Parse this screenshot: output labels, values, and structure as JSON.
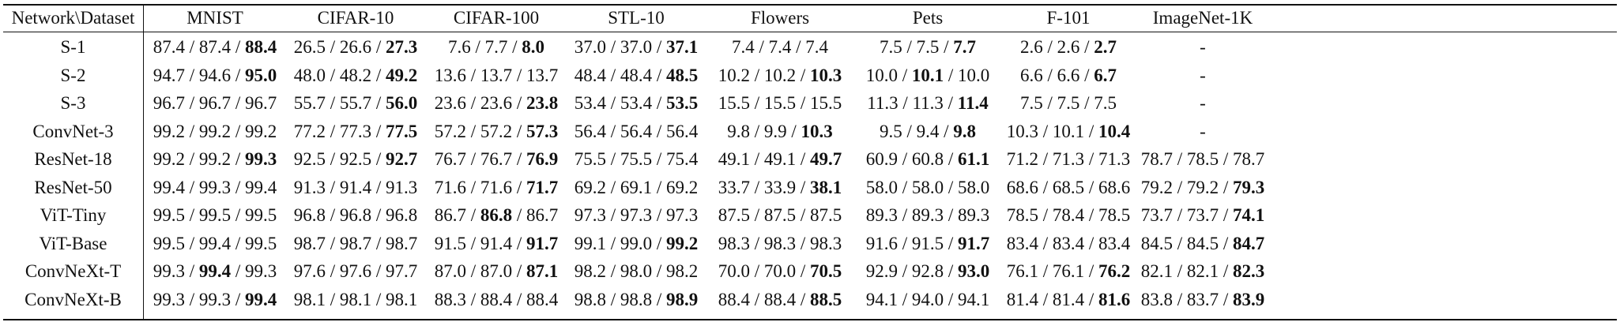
{
  "table": {
    "corner_header": "Network\\Dataset",
    "columns": [
      "MNIST",
      "CIFAR-10",
      "CIFAR-100",
      "STL-10",
      "Flowers",
      "Pets",
      "F-101",
      "ImageNet-1K"
    ],
    "rows": [
      {
        "network": "S-1",
        "cells": [
          {
            "a": "87.4",
            "b": "87.4",
            "c": "88.4",
            "bold": 2
          },
          {
            "a": "26.5",
            "b": "26.6",
            "c": "27.3",
            "bold": 2
          },
          {
            "a": "7.6",
            "b": "7.7",
            "c": "8.0",
            "bold": 2
          },
          {
            "a": "37.0",
            "b": "37.0",
            "c": "37.1",
            "bold": 2
          },
          {
            "a": "7.4",
            "b": "7.4",
            "c": "7.4",
            "bold": -1
          },
          {
            "a": "7.5",
            "b": "7.5",
            "c": "7.7",
            "bold": 2
          },
          {
            "a": "2.6",
            "b": "2.6",
            "c": "2.7",
            "bold": 2
          },
          {
            "dash": "-"
          }
        ]
      },
      {
        "network": "S-2",
        "cells": [
          {
            "a": "94.7",
            "b": "94.6",
            "c": "95.0",
            "bold": 2
          },
          {
            "a": "48.0",
            "b": "48.2",
            "c": "49.2",
            "bold": 2
          },
          {
            "a": "13.6",
            "b": "13.7",
            "c": "13.7",
            "bold": -1
          },
          {
            "a": "48.4",
            "b": "48.4",
            "c": "48.5",
            "bold": 2
          },
          {
            "a": "10.2",
            "b": "10.2",
            "c": "10.3",
            "bold": 2
          },
          {
            "a": "10.0",
            "b": "10.1",
            "c": "10.0",
            "bold": 1
          },
          {
            "a": "6.6",
            "b": "6.6",
            "c": "6.7",
            "bold": 2
          },
          {
            "dash": "-"
          }
        ]
      },
      {
        "network": "S-3",
        "cells": [
          {
            "a": "96.7",
            "b": "96.7",
            "c": "96.7",
            "bold": -1
          },
          {
            "a": "55.7",
            "b": "55.7",
            "c": "56.0",
            "bold": 2
          },
          {
            "a": "23.6",
            "b": "23.6",
            "c": "23.8",
            "bold": 2
          },
          {
            "a": "53.4",
            "b": "53.4",
            "c": "53.5",
            "bold": 2
          },
          {
            "a": "15.5",
            "b": "15.5",
            "c": "15.5",
            "bold": -1
          },
          {
            "a": "11.3",
            "b": "11.3",
            "c": "11.4",
            "bold": 2
          },
          {
            "a": "7.5",
            "b": "7.5",
            "c": "7.5",
            "bold": -1
          },
          {
            "dash": "-"
          }
        ]
      },
      {
        "network": "ConvNet-3",
        "cells": [
          {
            "a": "99.2",
            "b": "99.2",
            "c": "99.2",
            "bold": -1
          },
          {
            "a": "77.2",
            "b": "77.3",
            "c": "77.5",
            "bold": 2
          },
          {
            "a": "57.2",
            "b": "57.2",
            "c": "57.3",
            "bold": 2
          },
          {
            "a": "56.4",
            "b": "56.4",
            "c": "56.4",
            "bold": -1
          },
          {
            "a": "9.8",
            "b": "9.9",
            "c": "10.3",
            "bold": 2
          },
          {
            "a": "9.5",
            "b": "9.4",
            "c": "9.8",
            "bold": 2
          },
          {
            "a": "10.3",
            "b": "10.1",
            "c": "10.4",
            "bold": 2
          },
          {
            "dash": "-"
          }
        ]
      },
      {
        "network": "ResNet-18",
        "cells": [
          {
            "a": "99.2",
            "b": "99.2",
            "c": "99.3",
            "bold": 2
          },
          {
            "a": "92.5",
            "b": "92.5",
            "c": "92.7",
            "bold": 2
          },
          {
            "a": "76.7",
            "b": "76.7",
            "c": "76.9",
            "bold": 2
          },
          {
            "a": "75.5",
            "b": "75.5",
            "c": "75.4",
            "bold": -1
          },
          {
            "a": "49.1",
            "b": "49.1",
            "c": "49.7",
            "bold": 2
          },
          {
            "a": "60.9",
            "b": "60.8",
            "c": "61.1",
            "bold": 2
          },
          {
            "a": "71.2",
            "b": "71.3",
            "c": "71.3",
            "bold": -1
          },
          {
            "a": "78.7",
            "b": "78.5",
            "c": "78.7",
            "bold": -1
          }
        ]
      },
      {
        "network": "ResNet-50",
        "cells": [
          {
            "a": "99.4",
            "b": "99.3",
            "c": "99.4",
            "bold": -1
          },
          {
            "a": "91.3",
            "b": "91.4",
            "c": "91.3",
            "bold": -1
          },
          {
            "a": "71.6",
            "b": "71.6",
            "c": "71.7",
            "bold": 2
          },
          {
            "a": "69.2",
            "b": "69.1",
            "c": "69.2",
            "bold": -1
          },
          {
            "a": "33.7",
            "b": "33.9",
            "c": "38.1",
            "bold": 2
          },
          {
            "a": "58.0",
            "b": "58.0",
            "c": "58.0",
            "bold": -1
          },
          {
            "a": "68.6",
            "b": "68.5",
            "c": "68.6",
            "bold": -1
          },
          {
            "a": "79.2",
            "b": "79.2",
            "c": "79.3",
            "bold": 2
          }
        ]
      },
      {
        "network": "ViT-Tiny",
        "cells": [
          {
            "a": "99.5",
            "b": "99.5",
            "c": "99.5",
            "bold": -1
          },
          {
            "a": "96.8",
            "b": "96.8",
            "c": "96.8",
            "bold": -1
          },
          {
            "a": "86.7",
            "b": "86.8",
            "c": "86.7",
            "bold": 1
          },
          {
            "a": "97.3",
            "b": "97.3",
            "c": "97.3",
            "bold": -1
          },
          {
            "a": "87.5",
            "b": "87.5",
            "c": "87.5",
            "bold": -1
          },
          {
            "a": "89.3",
            "b": "89.3",
            "c": "89.3",
            "bold": -1
          },
          {
            "a": "78.5",
            "b": "78.4",
            "c": "78.5",
            "bold": -1
          },
          {
            "a": "73.7",
            "b": "73.7",
            "c": "74.1",
            "bold": 2
          }
        ]
      },
      {
        "network": "ViT-Base",
        "cells": [
          {
            "a": "99.5",
            "b": "99.4",
            "c": "99.5",
            "bold": -1
          },
          {
            "a": "98.7",
            "b": "98.7",
            "c": "98.7",
            "bold": -1
          },
          {
            "a": "91.5",
            "b": "91.4",
            "c": "91.7",
            "bold": 2
          },
          {
            "a": "99.1",
            "b": "99.0",
            "c": "99.2",
            "bold": 2
          },
          {
            "a": "98.3",
            "b": "98.3",
            "c": "98.3",
            "bold": -1
          },
          {
            "a": "91.6",
            "b": "91.5",
            "c": "91.7",
            "bold": 2
          },
          {
            "a": "83.4",
            "b": "83.4",
            "c": "83.4",
            "bold": -1
          },
          {
            "a": "84.5",
            "b": "84.5",
            "c": "84.7",
            "bold": 2
          }
        ]
      },
      {
        "network": "ConvNeXt-T",
        "cells": [
          {
            "a": "99.3",
            "b": "99.4",
            "c": "99.3",
            "bold": 1
          },
          {
            "a": "97.6",
            "b": "97.6",
            "c": "97.7",
            "bold": -1
          },
          {
            "a": "87.0",
            "b": "87.0",
            "c": "87.1",
            "bold": 2
          },
          {
            "a": "98.2",
            "b": "98.0",
            "c": "98.2",
            "bold": -1
          },
          {
            "a": "70.0",
            "b": "70.0",
            "c": "70.5",
            "bold": 2
          },
          {
            "a": "92.9",
            "b": "92.8",
            "c": "93.0",
            "bold": 2
          },
          {
            "a": "76.1",
            "b": "76.1",
            "c": "76.2",
            "bold": 2
          },
          {
            "a": "82.1",
            "b": "82.1",
            "c": "82.3",
            "bold": 2
          }
        ]
      },
      {
        "network": "ConvNeXt-B",
        "cells": [
          {
            "a": "99.3",
            "b": "99.3",
            "c": "99.4",
            "bold": 2
          },
          {
            "a": "98.1",
            "b": "98.1",
            "c": "98.1",
            "bold": -1
          },
          {
            "a": "88.3",
            "b": "88.4",
            "c": "88.4",
            "bold": -1
          },
          {
            "a": "98.8",
            "b": "98.8",
            "c": "98.9",
            "bold": 2
          },
          {
            "a": "88.4",
            "b": "88.4",
            "c": "88.5",
            "bold": 2
          },
          {
            "a": "94.1",
            "b": "94.0",
            "c": "94.1",
            "bold": -1
          },
          {
            "a": "81.4",
            "b": "81.4",
            "c": "81.6",
            "bold": 2
          },
          {
            "a": "83.8",
            "b": "83.7",
            "c": "83.9",
            "bold": 2
          }
        ]
      }
    ]
  }
}
